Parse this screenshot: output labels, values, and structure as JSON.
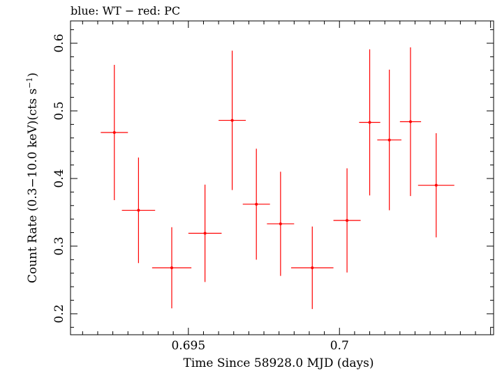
{
  "chart_data": {
    "type": "scatter",
    "title": "blue: WT − red: PC",
    "xlabel": "Time Since 58928.0 MJD (days)",
    "ylabel": "Count Rate (0.3−10.0 keV)(cts s",
    "ylabel_sup": "−1",
    "ylabel_end": ")",
    "xlim": [
      0.6911,
      0.7051
    ],
    "ylim": [
      0.169,
      0.633
    ],
    "x_ticks": [
      {
        "value": 0.695,
        "label": "0.695"
      },
      {
        "value": 0.7,
        "label": "0.7"
      }
    ],
    "y_ticks": [
      {
        "value": 0.2,
        "label": "0.2"
      },
      {
        "value": 0.3,
        "label": "0.3"
      },
      {
        "value": 0.4,
        "label": "0.4"
      },
      {
        "value": 0.5,
        "label": "0.5"
      },
      {
        "value": 0.6,
        "label": "0.6"
      }
    ],
    "series": [
      {
        "color": "#ff0000",
        "points": [
          {
            "x": 0.69255,
            "xerr": 0.00045,
            "y": 0.468,
            "yerr": 0.1
          },
          {
            "x": 0.69335,
            "xerr": 0.00055,
            "y": 0.353,
            "yerr": 0.078
          },
          {
            "x": 0.69445,
            "xerr": 0.00065,
            "y": 0.268,
            "yerr": 0.06
          },
          {
            "x": 0.69555,
            "xerr": 0.00055,
            "y": 0.319,
            "yerr": 0.072
          },
          {
            "x": 0.69645,
            "xerr": 0.00045,
            "y": 0.486,
            "yerr": 0.103
          },
          {
            "x": 0.69725,
            "xerr": 0.00045,
            "y": 0.362,
            "yerr": 0.082
          },
          {
            "x": 0.69805,
            "xerr": 0.00045,
            "y": 0.333,
            "yerr": 0.077
          },
          {
            "x": 0.6991,
            "xerr": 0.0007,
            "y": 0.268,
            "yerr": 0.061
          },
          {
            "x": 0.70025,
            "xerr": 0.00045,
            "y": 0.338,
            "yerr": 0.077
          },
          {
            "x": 0.701,
            "xerr": 0.00035,
            "y": 0.483,
            "yerr": 0.108
          },
          {
            "x": 0.70165,
            "xerr": 0.0004,
            "y": 0.457,
            "yerr": 0.104
          },
          {
            "x": 0.70235,
            "xerr": 0.00035,
            "y": 0.484,
            "yerr": 0.11
          },
          {
            "x": 0.7032,
            "xerr": 0.0006,
            "y": 0.39,
            "yerr": 0.077
          }
        ]
      }
    ]
  }
}
